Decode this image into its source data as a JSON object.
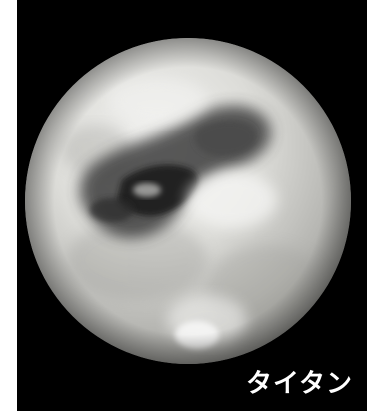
{
  "image": {
    "subject": "planet-photo",
    "caption": "タイタン",
    "colors": {
      "background": "#000000",
      "frame_left": "#ffffff",
      "caption": "#ffffff"
    }
  }
}
